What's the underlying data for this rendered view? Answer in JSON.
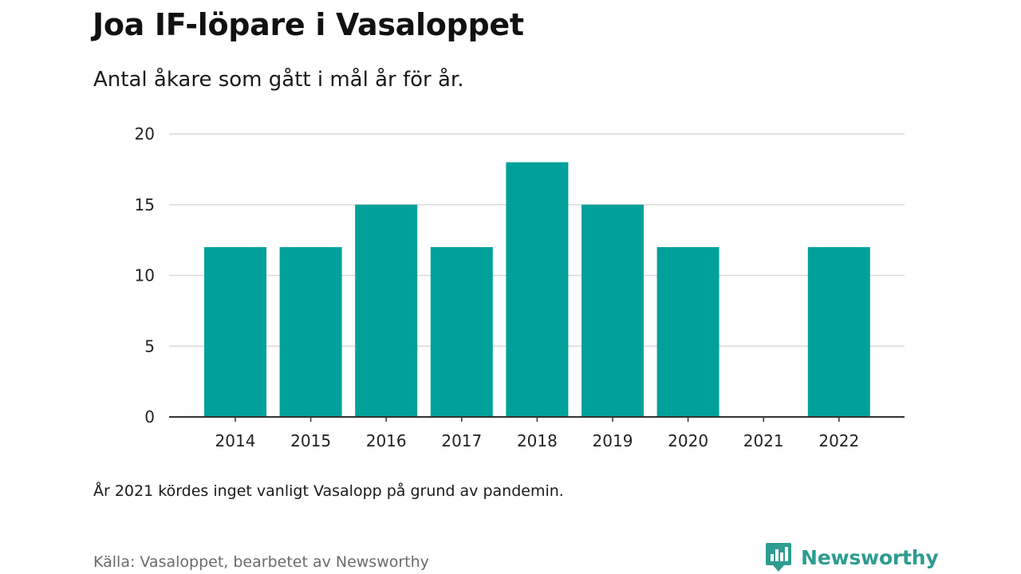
{
  "chart_data": {
    "type": "bar",
    "title": "Joa IF-löpare i Vasaloppet",
    "subtitle": "Antal åkare som gått i mål år för år.",
    "categories": [
      "2014",
      "2015",
      "2016",
      "2017",
      "2018",
      "2019",
      "2020",
      "2021",
      "2022"
    ],
    "values": [
      12,
      12,
      15,
      12,
      18,
      15,
      12,
      0,
      12
    ],
    "ylim": [
      0,
      20
    ],
    "yticks": [
      0,
      5,
      10,
      15,
      20
    ],
    "xlabel": "",
    "ylabel": "",
    "grid": true,
    "bar_color": "#00a19a",
    "note": "År 2021 kördes inget vanligt Vasalopp på grund av pandemin.",
    "source": "Källa: Vasaloppet, bearbetet av Newsworthy"
  },
  "brand": {
    "name": "Newsworthy",
    "color": "#2e9c91",
    "icon": "newsworthy-logo-icon"
  }
}
